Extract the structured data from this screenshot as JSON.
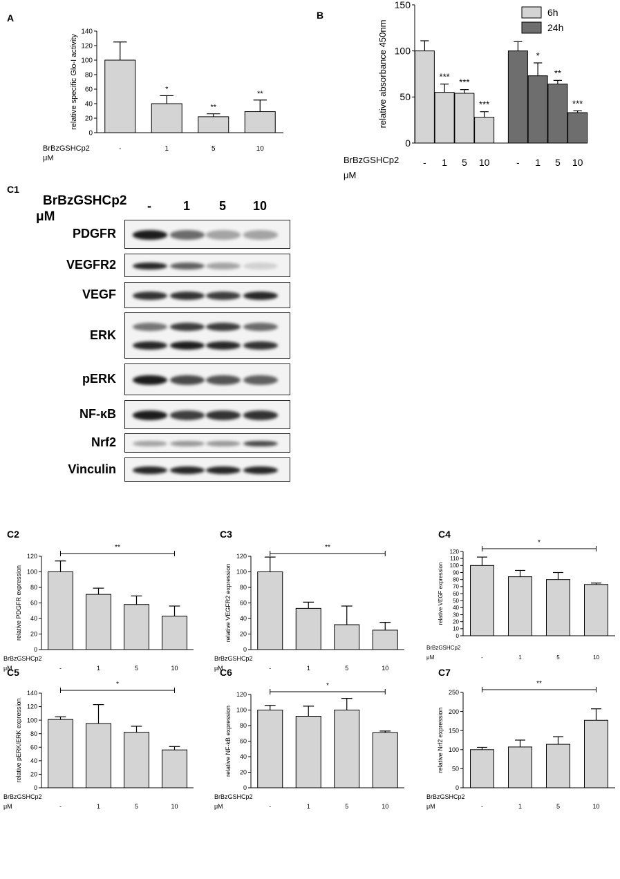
{
  "panel_letters": {
    "A": "A",
    "B": "B",
    "C1": "C1",
    "C2": "C2",
    "C3": "C3",
    "C4": "C4",
    "C5": "C5",
    "C6": "C6",
    "C7": "C7"
  },
  "blot": {
    "treatment": "BrBzGSHCp2",
    "unit": "μM",
    "lanes": [
      "-",
      "1",
      "5",
      "10"
    ],
    "rows": [
      {
        "label": "PDGFR",
        "bands": [
          [
            0.95
          ],
          [
            0.6
          ],
          [
            0.35
          ],
          [
            0.35
          ]
        ]
      },
      {
        "label": "VEGFR2",
        "bands": [
          [
            0.9
          ],
          [
            0.65
          ],
          [
            0.35
          ],
          [
            0.15
          ]
        ]
      },
      {
        "label": "VEGF",
        "bands": [
          [
            0.85
          ],
          [
            0.85
          ],
          [
            0.8
          ],
          [
            0.9
          ]
        ]
      },
      {
        "label": "ERK",
        "bands": [
          [
            0.55,
            0.9
          ],
          [
            0.8,
            0.95
          ],
          [
            0.8,
            0.9
          ],
          [
            0.6,
            0.85
          ]
        ]
      },
      {
        "label": "pERK",
        "bands": [
          [
            0.95
          ],
          [
            0.75
          ],
          [
            0.7
          ],
          [
            0.65
          ]
        ]
      },
      {
        "label": "NF-κB",
        "bands": [
          [
            0.95
          ],
          [
            0.8
          ],
          [
            0.85
          ],
          [
            0.85
          ]
        ]
      },
      {
        "label": "Nrf2",
        "bands": [
          [
            0.35
          ],
          [
            0.4
          ],
          [
            0.4
          ],
          [
            0.75
          ]
        ]
      },
      {
        "label": "Vinculin",
        "bands": [
          [
            0.9
          ],
          [
            0.9
          ],
          [
            0.9
          ],
          [
            0.9
          ]
        ]
      }
    ]
  },
  "chart_data": [
    {
      "id": "A",
      "type": "bar",
      "ylabel": "relative specific Glo-I activity",
      "ylim": [
        0,
        140
      ],
      "yticks": [
        0,
        20,
        40,
        60,
        80,
        100,
        120,
        140
      ],
      "categories": [
        "-",
        "1",
        "5",
        "10"
      ],
      "x_title": [
        "BrBzGSHCp2",
        "μM"
      ],
      "series": [
        {
          "values": [
            100,
            40,
            22,
            29
          ],
          "errors": [
            25,
            11,
            4,
            16
          ],
          "color": "#d4d4d4"
        }
      ],
      "significance": [
        "",
        "*",
        "**",
        "**"
      ]
    },
    {
      "id": "B",
      "type": "bar",
      "ylabel": "relative absorbance 450nm",
      "ylim": [
        0,
        150
      ],
      "yticks": [
        0,
        50,
        100,
        150
      ],
      "categories": [
        "-",
        "1",
        "5",
        "10",
        "-",
        "1",
        "5",
        "10"
      ],
      "x_title": [
        "BrBzGSHCp2",
        "μM"
      ],
      "legend_position": "top-right",
      "series": [
        {
          "name": "6h",
          "color": "#d4d4d4",
          "values": [
            100,
            55,
            54,
            28,
            null,
            null,
            null,
            null
          ],
          "errors": [
            11,
            9,
            4,
            6,
            null,
            null,
            null,
            null
          ],
          "significance": [
            "",
            "***",
            "***",
            "***",
            "",
            "",
            "",
            ""
          ]
        },
        {
          "name": "24h",
          "color": "#6e6e6e",
          "values": [
            null,
            null,
            null,
            null,
            100,
            73,
            64,
            33
          ],
          "errors": [
            null,
            null,
            null,
            null,
            10,
            14,
            4,
            2
          ],
          "significance": [
            "",
            "",
            "",
            "",
            "",
            "*",
            "**",
            "***"
          ]
        }
      ]
    },
    {
      "id": "C2",
      "type": "bar",
      "ylabel": "relative PDGFR expression",
      "ylim": [
        0,
        120
      ],
      "yticks": [
        0,
        20,
        40,
        60,
        80,
        100,
        120
      ],
      "categories": [
        "-",
        "1",
        "5",
        "10"
      ],
      "x_title": [
        "BrBzGSHCp2",
        "μM"
      ],
      "series": [
        {
          "values": [
            100,
            71,
            58,
            43
          ],
          "errors": [
            14,
            8,
            11,
            13
          ],
          "color": "#d4d4d4"
        }
      ],
      "bracket": "**"
    },
    {
      "id": "C3",
      "type": "bar",
      "ylabel": "relative VEGFR2 expression",
      "ylim": [
        0,
        120
      ],
      "yticks": [
        0,
        20,
        40,
        60,
        80,
        100,
        120
      ],
      "categories": [
        "-",
        "1",
        "5",
        "10"
      ],
      "x_title": [
        "BrBzGSHCp2",
        "μM"
      ],
      "series": [
        {
          "values": [
            100,
            53,
            32,
            25
          ],
          "errors": [
            19,
            8,
            24,
            10
          ],
          "color": "#d4d4d4"
        }
      ],
      "bracket": "**"
    },
    {
      "id": "C4",
      "type": "bar",
      "ylabel": "relative VEGF expression",
      "ylim": [
        0,
        120
      ],
      "yticks": [
        0,
        10,
        20,
        30,
        40,
        50,
        60,
        70,
        80,
        90,
        100,
        110,
        120
      ],
      "categories": [
        "-",
        "1",
        "5",
        "10"
      ],
      "x_title": [
        "BrBzGSHCp2",
        "μM"
      ],
      "series": [
        {
          "values": [
            100,
            84,
            80,
            73
          ],
          "errors": [
            12,
            9,
            10,
            2
          ],
          "color": "#d4d4d4"
        }
      ],
      "bracket": "*"
    },
    {
      "id": "C5",
      "type": "bar",
      "ylabel": "relative pERK/ERK expression",
      "ylim": [
        0,
        140
      ],
      "yticks": [
        0,
        20,
        40,
        60,
        80,
        100,
        120,
        140
      ],
      "categories": [
        "-",
        "1",
        "5",
        "10"
      ],
      "x_title": [
        "BrBzGSHCp2",
        "μM"
      ],
      "series": [
        {
          "values": [
            101,
            95,
            82,
            56
          ],
          "errors": [
            4,
            28,
            9,
            5
          ],
          "color": "#d4d4d4"
        }
      ],
      "bracket": "*"
    },
    {
      "id": "C6",
      "type": "bar",
      "ylabel": "relative NF-kB expression",
      "ylim": [
        0,
        120
      ],
      "yticks": [
        0,
        20,
        40,
        60,
        80,
        100,
        120
      ],
      "categories": [
        "-",
        "1",
        "5",
        "10"
      ],
      "x_title": [
        "BrBzGSHCp2",
        "μM"
      ],
      "series": [
        {
          "values": [
            100,
            92,
            100,
            71
          ],
          "errors": [
            6,
            13,
            15,
            2
          ],
          "color": "#d4d4d4"
        }
      ],
      "bracket": "*"
    },
    {
      "id": "C7",
      "type": "bar",
      "ylabel": "relative Nrf2 expression",
      "ylim": [
        0,
        250
      ],
      "yticks": [
        0,
        50,
        100,
        150,
        200,
        250
      ],
      "categories": [
        "-",
        "1",
        "5",
        "10"
      ],
      "x_title": [
        "BrBzGSHCp2",
        "μM"
      ],
      "series": [
        {
          "values": [
            100,
            107,
            114,
            177
          ],
          "errors": [
            6,
            18,
            20,
            30
          ],
          "color": "#d4d4d4"
        }
      ],
      "bracket": "**"
    }
  ]
}
